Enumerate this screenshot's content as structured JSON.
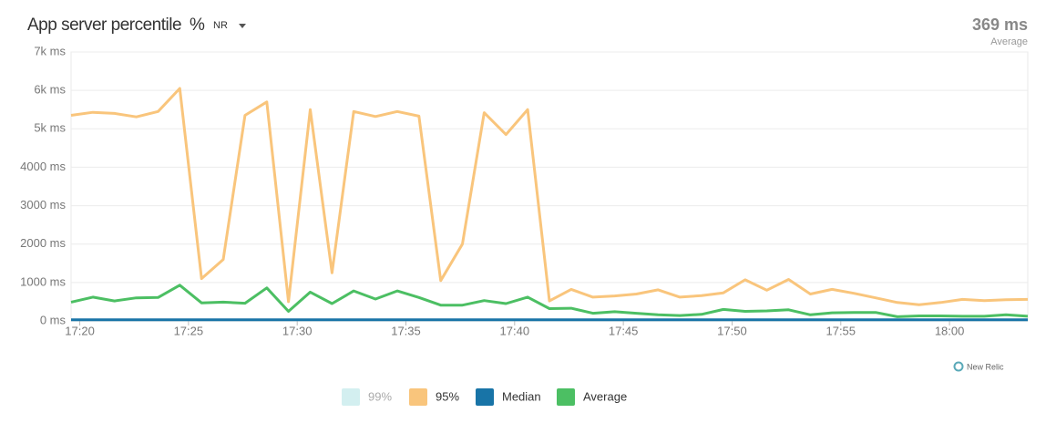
{
  "header": {
    "title": "App server percentile",
    "unit_toggle": "%",
    "unit_sub": "NR",
    "summary_value": "369 ms",
    "summary_label": "Average",
    "brand": "New Relic"
  },
  "chart_data": {
    "type": "line",
    "x": [
      19.6,
      20.6,
      21.6,
      22.6,
      23.6,
      24.6,
      25.6,
      26.6,
      27.6,
      28.6,
      29.6,
      30.6,
      31.6,
      32.6,
      33.6,
      34.6,
      35.6,
      36.6,
      37.6,
      38.6,
      39.6,
      40.6,
      41.6,
      42.6,
      43.6,
      44.6,
      45.6,
      46.6,
      47.6,
      48.6,
      49.6,
      50.6,
      51.6,
      52.6,
      53.6,
      54.6,
      55.6,
      56.6,
      57.6,
      58.6,
      59.6,
      60.6,
      61.6,
      62.6,
      63.6
    ],
    "xlim": [
      19.6,
      63.6
    ],
    "xticks": [
      {
        "value": 20,
        "label": "17:20"
      },
      {
        "value": 25,
        "label": "17:25"
      },
      {
        "value": 30,
        "label": "17:30"
      },
      {
        "value": 35,
        "label": "17:35"
      },
      {
        "value": 40,
        "label": "17:40"
      },
      {
        "value": 45,
        "label": "17:45"
      },
      {
        "value": 50,
        "label": "17:50"
      },
      {
        "value": 55,
        "label": "17:55"
      },
      {
        "value": 60,
        "label": "18:00"
      }
    ],
    "ylim": [
      0,
      7000
    ],
    "yticks": [
      {
        "value": 0,
        "label": "0 ms"
      },
      {
        "value": 1000,
        "label": "1000 ms"
      },
      {
        "value": 2000,
        "label": "2000 ms"
      },
      {
        "value": 3000,
        "label": "3000 ms"
      },
      {
        "value": 4000,
        "label": "4000 ms"
      },
      {
        "value": 5000,
        "label": "5k ms"
      },
      {
        "value": 6000,
        "label": "6k ms"
      },
      {
        "value": 7000,
        "label": "7k ms"
      }
    ],
    "grid": true,
    "series": [
      {
        "name": "99%",
        "color": "#d3eff0",
        "visible": false,
        "values": [
          null,
          null,
          null,
          null,
          null,
          null,
          null,
          null,
          null,
          null,
          null,
          null,
          null,
          null,
          null,
          null,
          null,
          null,
          null,
          null,
          null,
          null,
          null,
          null,
          null,
          null,
          null,
          null,
          null,
          null,
          null,
          null,
          null,
          null,
          null,
          null,
          null,
          null,
          null,
          null,
          null,
          null,
          null,
          null,
          null
        ]
      },
      {
        "name": "95%",
        "color": "#f9c57c",
        "visible": true,
        "values": [
          5350,
          5430,
          5400,
          5310,
          5450,
          6050,
          1100,
          1600,
          5350,
          5700,
          500,
          5500,
          1250,
          5450,
          5320,
          5450,
          5330,
          1050,
          2000,
          5420,
          4850,
          5500,
          520,
          820,
          620,
          650,
          700,
          810,
          620,
          660,
          730,
          1070,
          800,
          1080,
          700,
          820,
          720,
          600,
          480,
          420,
          480,
          560,
          530,
          550,
          560
        ]
      },
      {
        "name": "Median",
        "color": "#1874a7",
        "visible": true,
        "values": [
          30,
          30,
          30,
          30,
          30,
          30,
          30,
          30,
          30,
          30,
          30,
          30,
          30,
          30,
          30,
          30,
          30,
          30,
          30,
          30,
          30,
          30,
          30,
          30,
          30,
          30,
          30,
          30,
          30,
          30,
          30,
          30,
          30,
          30,
          30,
          30,
          30,
          30,
          30,
          30,
          30,
          30,
          30,
          30,
          30
        ]
      },
      {
        "name": "Average",
        "color": "#4cbf63",
        "visible": true,
        "values": [
          490,
          620,
          520,
          600,
          610,
          930,
          470,
          490,
          460,
          860,
          250,
          750,
          450,
          780,
          570,
          780,
          610,
          410,
          410,
          530,
          450,
          620,
          320,
          330,
          200,
          240,
          200,
          160,
          140,
          170,
          300,
          250,
          260,
          290,
          160,
          210,
          220,
          220,
          110,
          130,
          130,
          120,
          120,
          160,
          120
        ]
      }
    ]
  }
}
